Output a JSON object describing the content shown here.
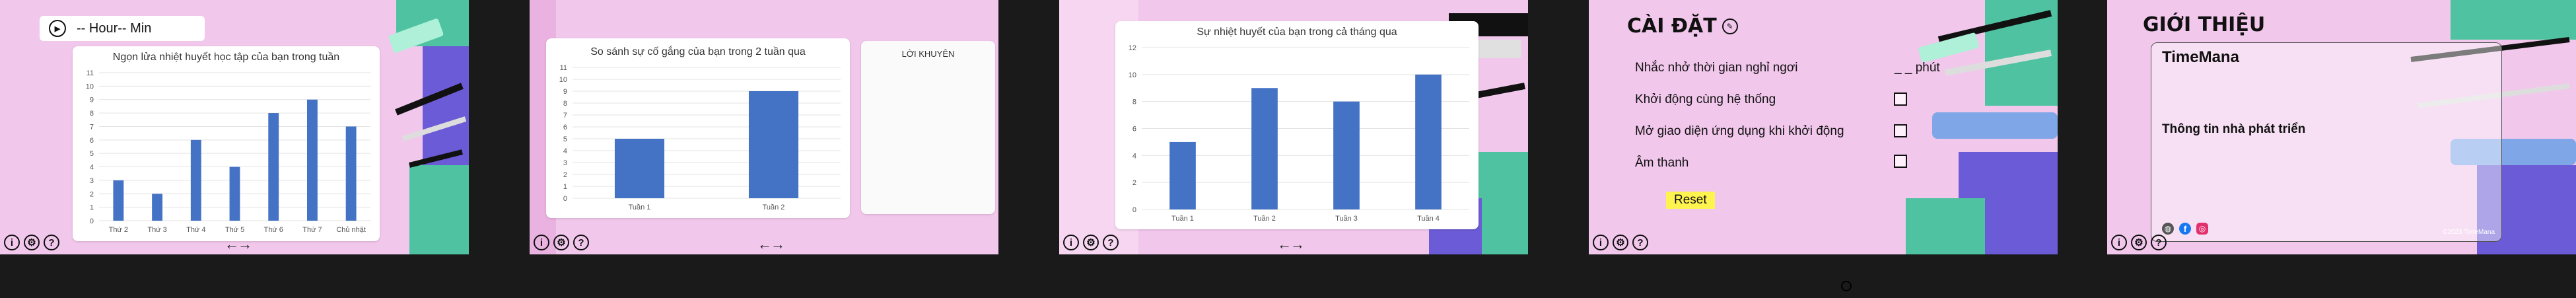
{
  "colors": {
    "panel_bg": "#f2c7ec",
    "bar": "#4472c4",
    "reset_bg": "#fff44f",
    "teal": "#4fc3a1"
  },
  "screen1": {
    "timer_label": "-- Hour-- Min",
    "chart_title": "Ngọn lửa nhiệt huyết học tập của bạn trong tuần"
  },
  "screen2": {
    "chart_title": "So sánh sự cố gắng của bạn trong 2 tuần qua",
    "advice_title": "LỜI KHUYÊN"
  },
  "screen3": {
    "chart_title": "Sự nhiệt huyết của bạn trong cả tháng qua"
  },
  "settings": {
    "title": "CÀI ĐẶT",
    "break_reminder": "Nhắc nhở thời gian nghỉ ngơi",
    "break_minutes": "_ _ phút",
    "startup": "Khởi động cùng hệ thống",
    "open_ui_on_start": "Mở giao diện ứng dụng khi khởi động",
    "sound": "Âm thanh",
    "reset_label": "Reset"
  },
  "about": {
    "title": "GIỚI THIỆU",
    "app_name": "TimeMana",
    "dev_info": "Thông tin nhà phát triển",
    "copyright": "©2023 TimeMana"
  },
  "chart_data": [
    {
      "type": "bar",
      "title": "Ngọn lửa nhiệt huyết học tập của bạn trong tuần",
      "categories": [
        "Thứ 2",
        "Thứ 3",
        "Thứ 4",
        "Thứ 5",
        "Thứ 6",
        "Thứ 7",
        "Chủ nhật"
      ],
      "values": [
        3,
        2,
        6,
        4,
        8,
        9,
        7
      ],
      "ylim": [
        0,
        11
      ],
      "yticks": [
        0,
        1,
        2,
        3,
        4,
        5,
        6,
        7,
        8,
        9,
        10,
        11
      ]
    },
    {
      "type": "bar",
      "title": "So sánh sự cố gắng của bạn trong 2 tuần qua",
      "categories": [
        "Tuần 1",
        "Tuần 2"
      ],
      "values": [
        5,
        9
      ],
      "ylim": [
        0,
        11
      ],
      "yticks": [
        0,
        1,
        2,
        3,
        4,
        5,
        6,
        7,
        8,
        9,
        10,
        11
      ]
    },
    {
      "type": "bar",
      "title": "Sự nhiệt huyết của bạn trong cả tháng qua",
      "categories": [
        "Tuần 1",
        "Tuần 2",
        "Tuần 3",
        "Tuần 4"
      ],
      "values": [
        5,
        9,
        8,
        10
      ],
      "ylim": [
        0,
        12
      ],
      "yticks": [
        0,
        2,
        4,
        6,
        8,
        10,
        12
      ]
    }
  ]
}
